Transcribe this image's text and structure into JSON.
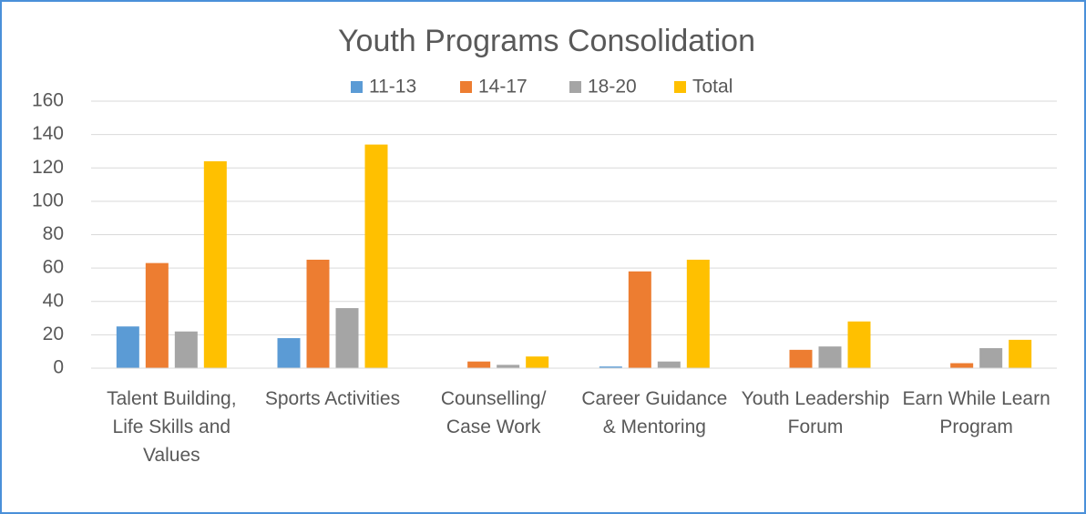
{
  "chart_data": {
    "type": "bar",
    "title": "Youth Programs Consolidation",
    "categories": [
      "Talent Building, Life Skills and Values",
      "Sports Activities",
      "Counselling/ Case Work",
      "Career Guidance & Mentoring",
      "Youth Leadership Forum",
      "Earn While Learn Program"
    ],
    "series": [
      {
        "name": "11-13",
        "color": "#5b9bd5",
        "values": [
          25,
          18,
          0,
          1,
          0,
          0
        ]
      },
      {
        "name": "14-17",
        "color": "#ed7d31",
        "values": [
          63,
          65,
          4,
          58,
          11,
          3
        ]
      },
      {
        "name": "18-20",
        "color": "#a5a5a5",
        "values": [
          22,
          36,
          2,
          4,
          13,
          12
        ]
      },
      {
        "name": "Total",
        "color": "#ffc000",
        "values": [
          124,
          134,
          7,
          65,
          28,
          17
        ]
      }
    ],
    "ylim": [
      0,
      160
    ],
    "yticks": [
      0,
      20,
      40,
      60,
      80,
      100,
      120,
      140,
      160
    ],
    "grid": true,
    "legend": "top"
  }
}
